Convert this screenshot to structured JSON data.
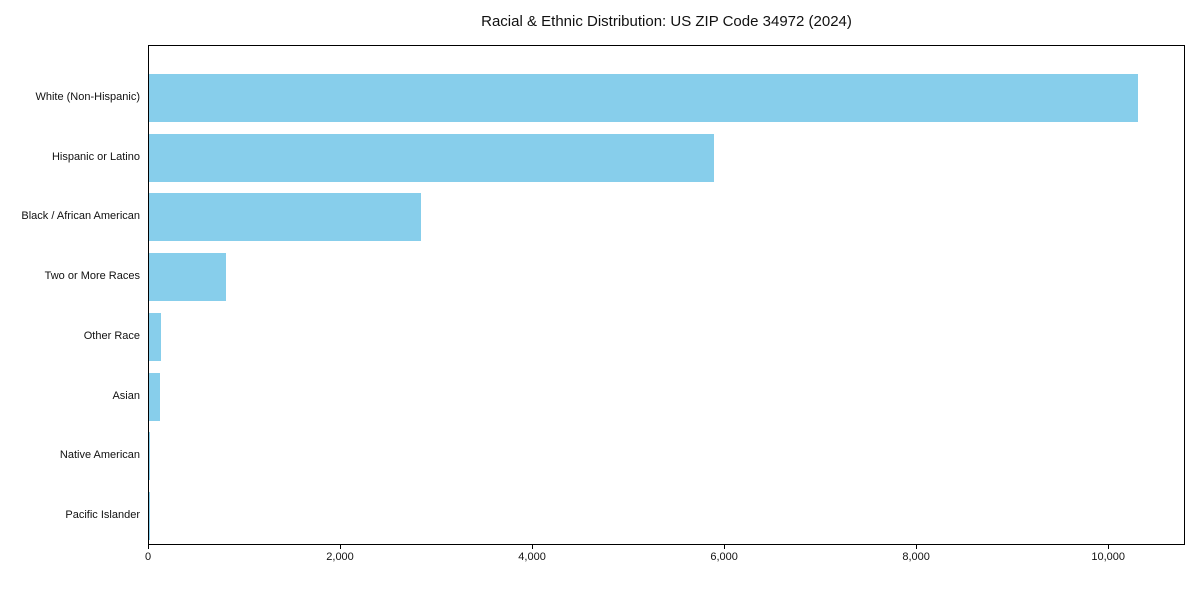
{
  "chart_data": {
    "type": "bar",
    "orientation": "horizontal",
    "title": "Racial & Ethnic Distribution: US ZIP Code 34972 (2024)",
    "categories": [
      "White (Non-Hispanic)",
      "Hispanic or Latino",
      "Black / African American",
      "Two or More Races",
      "Other Race",
      "Asian",
      "Native American",
      "Pacific Islander"
    ],
    "values": [
      10300,
      5880,
      2830,
      800,
      130,
      110,
      15,
      5
    ],
    "bar_color": "#87CEEB",
    "xlabel": "",
    "ylabel": "",
    "xlim": [
      0,
      10800
    ],
    "xticks": [
      0,
      2000,
      4000,
      6000,
      8000,
      10000
    ],
    "xticklabels": [
      "0",
      "2,000",
      "4,000",
      "6,000",
      "8,000",
      "10,000"
    ],
    "grid": false,
    "legend": null
  }
}
